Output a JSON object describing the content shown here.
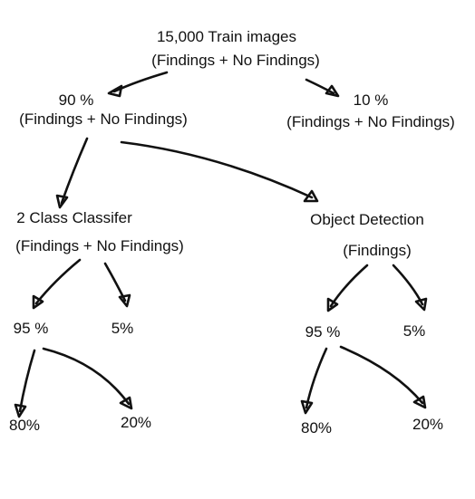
{
  "root": {
    "title": "15,000 Train images",
    "subtitle": "(Findings + No Findings)"
  },
  "train_split": {
    "percent": "90 %",
    "subtitle": "(Findings + No Findings)"
  },
  "test_split": {
    "percent": "10 %",
    "subtitle": "(Findings + No Findings)"
  },
  "classifier": {
    "title": "2 Class Classifer",
    "subtitle": "(Findings + No Findings)",
    "split_a": "95 %",
    "split_b": "5%",
    "sub_a": "80%",
    "sub_b": "20%"
  },
  "detection": {
    "title": "Object Detection",
    "subtitle": "(Findings)",
    "split_a": "95 %",
    "split_b": "5%",
    "sub_a": "80%",
    "sub_b": "20%"
  }
}
